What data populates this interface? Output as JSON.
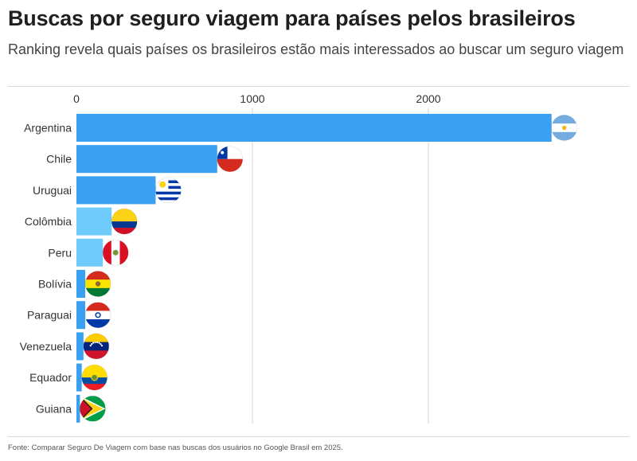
{
  "header": {
    "title": "Buscas por seguro viagem para países pelos brasileiros",
    "subtitle": "Ranking revela quais países os brasileiros estão mais interessados ao buscar um seguro viagem"
  },
  "footer": {
    "source": "Fonte: Comparar Seguro De Viagem com base nas buscas dos usuários no Google Brasil em 2025."
  },
  "chart_data": {
    "type": "bar",
    "orientation": "horizontal",
    "title": "Buscas por seguro viagem para países pelos brasileiros",
    "xlabel": "",
    "ylabel": "",
    "xlim": [
      0,
      2800
    ],
    "xticks": [
      0,
      1000,
      2000
    ],
    "grid": true,
    "categories": [
      "Argentina",
      "Chile",
      "Uruguai",
      "Colômbia",
      "Peru",
      "Bolívia",
      "Paraguai",
      "Venezuela",
      "Equador",
      "Guiana"
    ],
    "values": [
      2700,
      800,
      450,
      200,
      150,
      50,
      50,
      40,
      30,
      20
    ],
    "bar_colors": [
      "#3aa0f2",
      "#3aa0f2",
      "#3aa0f2",
      "#6fcbfb",
      "#6fcbfb",
      "#3aa0f2",
      "#3aa0f2",
      "#3aa0f2",
      "#3aa0f2",
      "#3aa0f2"
    ],
    "flags": [
      "argentina-flag-icon",
      "chile-flag-icon",
      "uruguay-flag-icon",
      "colombia-flag-icon",
      "peru-flag-icon",
      "bolivia-flag-icon",
      "paraguay-flag-icon",
      "venezuela-flag-icon",
      "ecuador-flag-icon",
      "guyana-flag-icon"
    ]
  }
}
